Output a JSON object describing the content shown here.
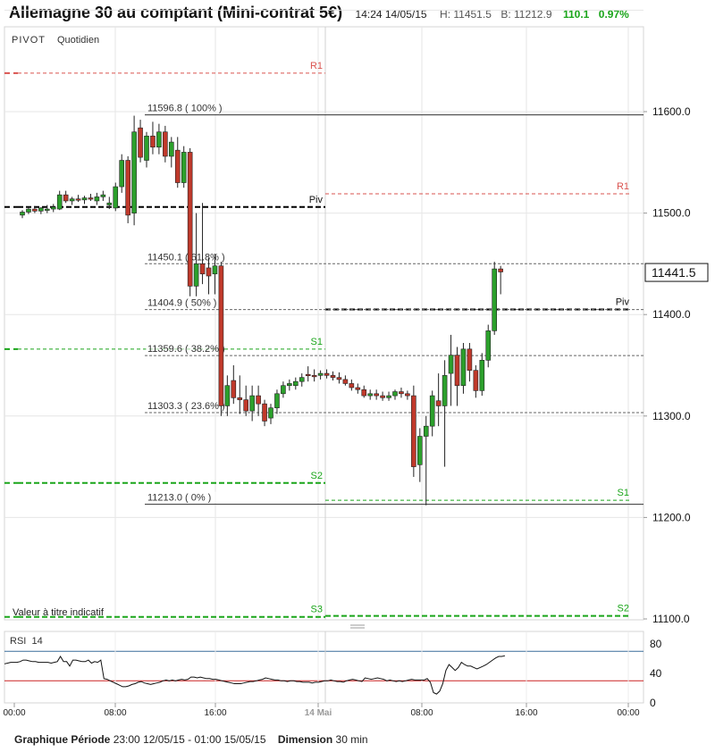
{
  "header": {
    "title": "Allemagne 30 au comptant (Mini-contrat 5€)",
    "time": "14:24 14/05/15",
    "high": "H: 11451.5",
    "bid": "B: 11212.9",
    "change": "110.1",
    "change_pct": "0.97%"
  },
  "panel": {
    "pivot_label": "PIVOT",
    "period_label": "Quotidien",
    "disclaimer": "Valeur à titre indicatif"
  },
  "colors": {
    "up": "#2ca02c",
    "down": "#c0392b",
    "pivot": "#000000",
    "resistance": "#d9534f",
    "support": "#1aa51a",
    "rsi_upper": "#3a6d9a",
    "rsi_lower": "#cc2222"
  },
  "chart_data": [
    {
      "type": "candlestick",
      "ylim": [
        11100,
        11700
      ],
      "y_ticks": [
        "11600.0",
        "11500.0",
        "11400.0",
        "11300.0",
        "11200.0",
        "11100.0"
      ],
      "current_price": "11441.5",
      "pivot_levels_day1": [
        {
          "label": "R1",
          "value": 11638,
          "style": "resistance"
        },
        {
          "label": "Piv",
          "value": 11506,
          "style": "pivot"
        },
        {
          "label": "S1",
          "value": 11366,
          "style": "support"
        },
        {
          "label": "S2",
          "value": 11234,
          "style": "support"
        },
        {
          "label": "S3",
          "value": 11102,
          "style": "support"
        }
      ],
      "pivot_levels_day2": [
        {
          "label": "R1",
          "value": 11519,
          "style": "resistance"
        },
        {
          "label": "Piv",
          "value": 11405,
          "style": "pivot"
        },
        {
          "label": "S1",
          "value": 11217,
          "style": "support"
        },
        {
          "label": "S2",
          "value": 11103,
          "style": "support"
        }
      ],
      "fibonacci": [
        {
          "label": "11596.8 ( 100% )",
          "value": 11596.8
        },
        {
          "label": "11450.1 ( 61.8% )",
          "value": 11450.1
        },
        {
          "label": "11404.9 ( 50% )",
          "value": 11404.9
        },
        {
          "label": "11359.6 ( 38.2% )",
          "value": 11359.6
        },
        {
          "label": "11303.3 ( 23.6% )",
          "value": 11303.3
        },
        {
          "label": "11213.0 ( 0% )",
          "value": 11213.0
        }
      ],
      "candles": [
        [
          11498,
          11503,
          11495,
          11501
        ],
        [
          11501,
          11506,
          11499,
          11504
        ],
        [
          11504,
          11507,
          11500,
          11502
        ],
        [
          11502,
          11506,
          11499,
          11505
        ],
        [
          11503,
          11508,
          11500,
          11504
        ],
        [
          11504,
          11509,
          11501,
          11506
        ],
        [
          11504,
          11522,
          11503,
          11518
        ],
        [
          11518,
          11522,
          11510,
          11512
        ],
        [
          11512,
          11516,
          11508,
          11514
        ],
        [
          11514,
          11518,
          11511,
          11513
        ],
        [
          11513,
          11517,
          11509,
          11515
        ],
        [
          11515,
          11519,
          11512,
          11514
        ],
        [
          11512,
          11520,
          11508,
          11516
        ],
        [
          11516,
          11522,
          11512,
          11518
        ],
        [
          11508,
          11516,
          11504,
          11510
        ],
        [
          11505,
          11530,
          11502,
          11526
        ],
        [
          11526,
          11558,
          11520,
          11552
        ],
        [
          11552,
          11556,
          11490,
          11498
        ],
        [
          11500,
          11596,
          11488,
          11580
        ],
        [
          11584,
          11592,
          11550,
          11555
        ],
        [
          11552,
          11580,
          11545,
          11576
        ],
        [
          11576,
          11590,
          11558,
          11565
        ],
        [
          11565,
          11588,
          11558,
          11580
        ],
        [
          11580,
          11586,
          11550,
          11556
        ],
        [
          11556,
          11575,
          11545,
          11570
        ],
        [
          11562,
          11575,
          11525,
          11530
        ],
        [
          11530,
          11566,
          11525,
          11560
        ],
        [
          11560,
          11564,
          11418,
          11428
        ],
        [
          11428,
          11500,
          11418,
          11450
        ],
        [
          11450,
          11510,
          11430,
          11440
        ],
        [
          11446,
          11456,
          11420,
          11438
        ],
        [
          11440,
          11460,
          11420,
          11448
        ],
        [
          11448,
          11452,
          11300,
          11310
        ],
        [
          11310,
          11340,
          11300,
          11330
        ],
        [
          11335,
          11350,
          11312,
          11318
        ],
        [
          11318,
          11340,
          11302,
          11316
        ],
        [
          11316,
          11330,
          11300,
          11305
        ],
        [
          11305,
          11330,
          11295,
          11320
        ],
        [
          11320,
          11330,
          11300,
          11312
        ],
        [
          11312,
          11316,
          11290,
          11295
        ],
        [
          11298,
          11312,
          11292,
          11308
        ],
        [
          11308,
          11326,
          11302,
          11322
        ],
        [
          11322,
          11334,
          11318,
          11330
        ],
        [
          11330,
          11336,
          11325,
          11332
        ],
        [
          11330,
          11338,
          11326,
          11334
        ],
        [
          11334,
          11342,
          11329,
          11338
        ],
        [
          11341,
          11349,
          11334,
          11340
        ],
        [
          11340,
          11346,
          11334,
          11339
        ],
        [
          11340,
          11345,
          11336,
          11342
        ],
        [
          11342,
          11346,
          11337,
          11340
        ],
        [
          11340,
          11344,
          11335,
          11338
        ],
        [
          11338,
          11343,
          11332,
          11336
        ],
        [
          11336,
          11340,
          11330,
          11332
        ],
        [
          11332,
          11336,
          11325,
          11328
        ],
        [
          11328,
          11332,
          11322,
          11326
        ],
        [
          11326,
          11330,
          11318,
          11320
        ],
        [
          11320,
          11326,
          11316,
          11322
        ],
        [
          11322,
          11326,
          11316,
          11320
        ],
        [
          11320,
          11324,
          11315,
          11318
        ],
        [
          11318,
          11324,
          11315,
          11320
        ],
        [
          11320,
          11326,
          11316,
          11324
        ],
        [
          11324,
          11328,
          11318,
          11322
        ],
        [
          11322,
          11325,
          11316,
          11320
        ],
        [
          11320,
          11330,
          11240,
          11250
        ],
        [
          11252,
          11288,
          11235,
          11280
        ],
        [
          11280,
          11300,
          11212,
          11290
        ],
        [
          11290,
          11325,
          11280,
          11320
        ],
        [
          11315,
          11342,
          11290,
          11310
        ],
        [
          11310,
          11355,
          11250,
          11340
        ],
        [
          11342,
          11380,
          11310,
          11360
        ],
        [
          11360,
          11368,
          11310,
          11330
        ],
        [
          11330,
          11372,
          11322,
          11366
        ],
        [
          11366,
          11372,
          11334,
          11345
        ],
        [
          11345,
          11350,
          11318,
          11325
        ],
        [
          11325,
          11362,
          11320,
          11355
        ],
        [
          11355,
          11390,
          11348,
          11384
        ],
        [
          11384,
          11452,
          11380,
          11445
        ],
        [
          11445,
          11448,
          11420,
          11442
        ]
      ],
      "xaxis": {
        "tick_labels": [
          "00:00",
          "08:00",
          "16:00",
          "14 Mai",
          "08:00",
          "16:00",
          "00:00"
        ]
      }
    },
    {
      "type": "line",
      "name": "RSI",
      "ylim": [
        0,
        100
      ],
      "y_ticks": [
        "80",
        "40",
        "0"
      ],
      "upper_line": 70,
      "lower_line": 30,
      "values": [
        53,
        54,
        55,
        55,
        55,
        56,
        58,
        58,
        57,
        56,
        56,
        55,
        55,
        55,
        55,
        54,
        55,
        56,
        63,
        56,
        56,
        50,
        58,
        58,
        57,
        56,
        56,
        58,
        54,
        56,
        55,
        58,
        33,
        32,
        30,
        28,
        26,
        24,
        22,
        22,
        23,
        25,
        26,
        28,
        29,
        27,
        26,
        25,
        26,
        27,
        28,
        30,
        31,
        30,
        31,
        30,
        31,
        32,
        31,
        32,
        35,
        35,
        34,
        35,
        34,
        33,
        33,
        32,
        32,
        31,
        30,
        29,
        28,
        27,
        26,
        26,
        26,
        27,
        28,
        29,
        29,
        30,
        31,
        32,
        34,
        33,
        32,
        31,
        31,
        30,
        30,
        29,
        30,
        30,
        29,
        29,
        28,
        28,
        28,
        27,
        28,
        28,
        29,
        30,
        30,
        31,
        30,
        29,
        29,
        28,
        30,
        31,
        32,
        31,
        30,
        29,
        34,
        33,
        32,
        33,
        34,
        33,
        32,
        30,
        31,
        30,
        29,
        30,
        29,
        30,
        31,
        32,
        31,
        31,
        31,
        31,
        33,
        28,
        14,
        12,
        16,
        26,
        44,
        52,
        48,
        44,
        48,
        55,
        52,
        50,
        50,
        48,
        46,
        48,
        50,
        52,
        55,
        58,
        61,
        63,
        63,
        64
      ]
    }
  ],
  "footer": {
    "period_label": "Graphique Période",
    "period_value": "23:00 12/05/15 - 01:00 15/05/15",
    "dim_label": "Dimension",
    "dim_value": "30 min"
  }
}
